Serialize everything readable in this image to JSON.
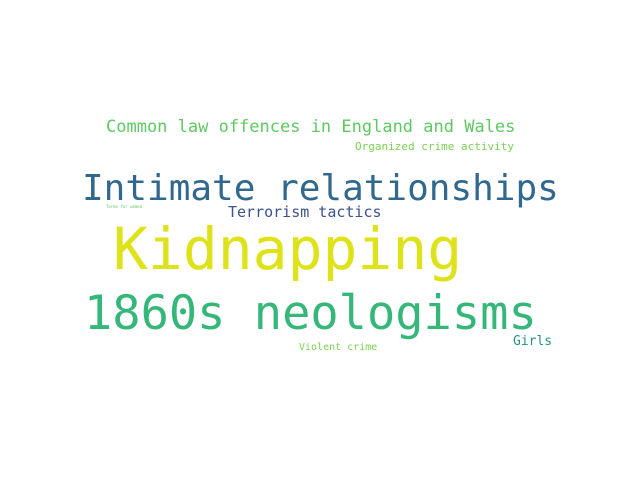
{
  "words": [
    {
      "id": "common",
      "text": "Common law offences in England and Wales",
      "color": "#5ec962"
    },
    {
      "id": "organized",
      "text": "Organized crime activity",
      "color": "#7ad151"
    },
    {
      "id": "intimate",
      "text": "Intimate relationships",
      "color": "#31688e"
    },
    {
      "id": "tiny",
      "text": "Terms for women",
      "color": "#5ec962"
    },
    {
      "id": "terror",
      "text": "Terrorism tactics",
      "color": "#3b528b"
    },
    {
      "id": "kidnap",
      "text": "Kidnapping",
      "color": "#dde318"
    },
    {
      "id": "1860s",
      "text": "1860s neologisms",
      "color": "#35b779"
    },
    {
      "id": "girls",
      "text": "Girls",
      "color": "#21918c"
    },
    {
      "id": "violent",
      "text": "Violent crime",
      "color": "#7ad151"
    }
  ]
}
